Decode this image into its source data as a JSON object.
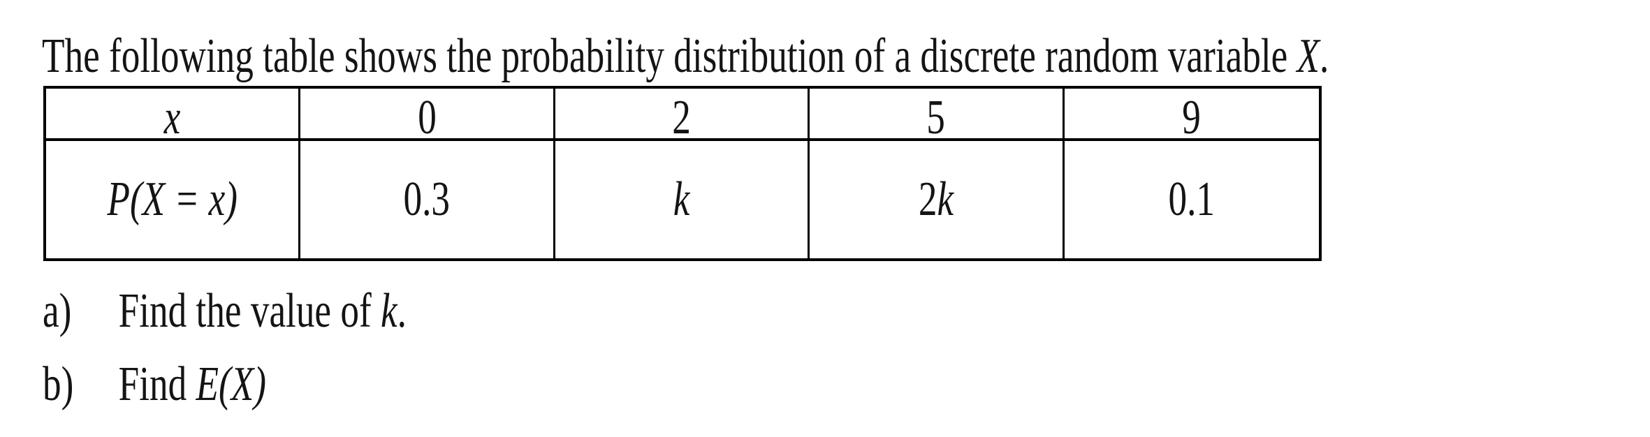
{
  "title": {
    "pre": "The following table shows the probability distribution of a discrete random variable ",
    "var": "X",
    "post": "."
  },
  "table": {
    "header_row": {
      "var_symbol": "x",
      "values": [
        "0",
        "2",
        "5",
        "9"
      ]
    },
    "prob_row": {
      "label": "P(X = x)",
      "p_at_0": "0.3",
      "p_at_2_var": "k",
      "p_at_5_coef": "2",
      "p_at_5_var": "k",
      "p_at_9": "0.1"
    }
  },
  "questions": [
    {
      "marker": "a)",
      "pre": "Find the value of ",
      "var": "k",
      "post": "."
    },
    {
      "marker": "b)",
      "pre": "Find ",
      "var": "E(X)",
      "post": ""
    }
  ],
  "colors": {
    "text": "#141414",
    "border": "#000000",
    "background": "#ffffff"
  }
}
